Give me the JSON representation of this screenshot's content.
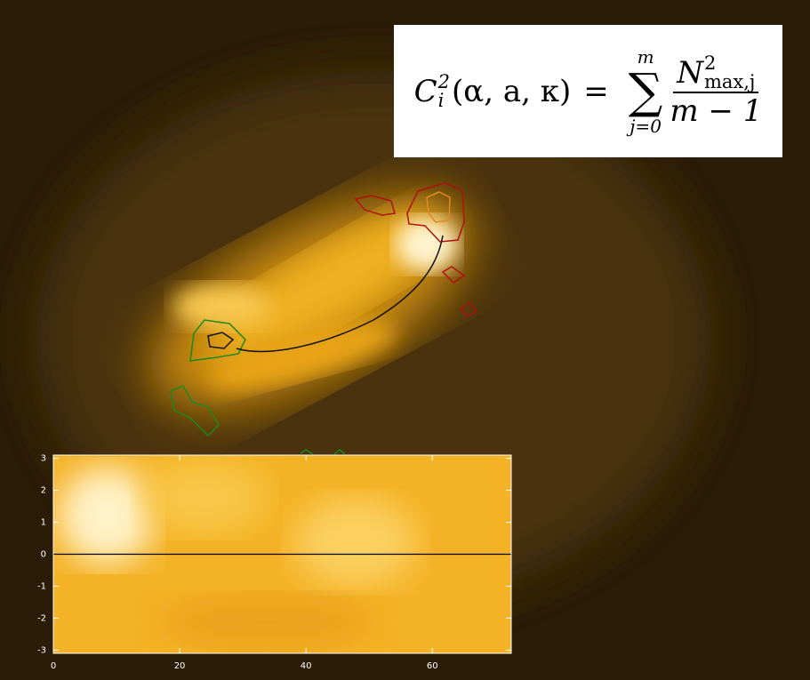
{
  "formula": {
    "symbol": "C",
    "symbol_sub": "i",
    "symbol_sup": "2",
    "args": "(α, a, κ)",
    "equals": "=",
    "sum_symbol": "∑",
    "sum_upper": "m",
    "sum_lower": "j=0",
    "numerator": "N",
    "numerator_sup": "2",
    "numerator_sub": "max,j",
    "denominator": "m − 1"
  },
  "chart_data": {
    "type": "inset",
    "xlim": [
      0,
      72.5
    ],
    "ylim": [
      -3.1,
      3.1
    ],
    "xticks": [
      0,
      20,
      40,
      60
    ],
    "yticks": [
      -3,
      -2,
      -1,
      0,
      1,
      2,
      3
    ],
    "hline": 0
  }
}
